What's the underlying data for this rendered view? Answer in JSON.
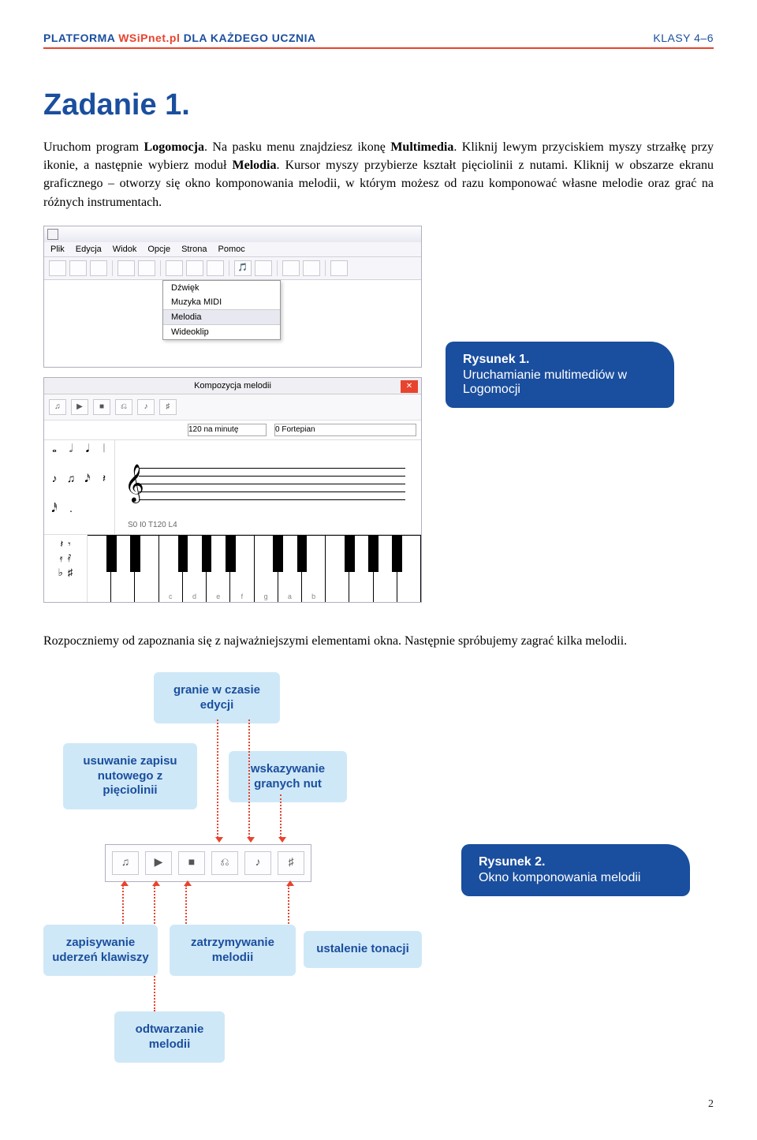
{
  "header": {
    "left_a": "PLATFORMA ",
    "left_b": "WSiPnet.pl",
    "left_c": " DLA KAŻDEGO UCZNIA",
    "right": "KLASY 4–6"
  },
  "title": "Zadanie 1.",
  "para1_a": "Uruchom program ",
  "para1_b": "Logomocja",
  "para1_c": ". Na pasku menu znajdziesz ikonę ",
  "para1_d": "Multimedia",
  "para1_e": ". Kliknij lewym przyciskiem myszy strzałkę przy ikonie, a następnie wybierz moduł ",
  "para1_f": "Melodia",
  "para1_g": ". Kursor myszy przybierze kształt pięciolinii z nutami. Kliknij w obszarze ekranu graficznego – otworzy się okno komponowania melodii, w którym możesz od razu komponować własne melodie oraz grać na różnych instrumentach.",
  "menubar": {
    "m1": "Plik",
    "m2": "Edycja",
    "m3": "Widok",
    "m4": "Opcje",
    "m5": "Strona",
    "m6": "Pomoc"
  },
  "dropdown": {
    "d1": "Dźwięk",
    "d2": "Muzyka MIDI",
    "d3": "Melodia",
    "d4": "Wideoklip"
  },
  "ss2": {
    "title": "Kompozycja melodii",
    "tempo_label": "120 na minutę",
    "instrument": "0 Fortepian",
    "status": "S0 I0 T120 L4",
    "notes": {
      "n1": "𝅝",
      "n2": "𝅗𝅥",
      "n3": "𝅘𝅥",
      "n4": "𝄀",
      "n5": "♪",
      "n6": "♫",
      "n7": "𝅘𝅥𝅯",
      "n8": "𝄽",
      "n9": "𝅘𝅥𝅰",
      "n10": "."
    },
    "keys": [
      "c",
      "d",
      "e",
      "f",
      "g",
      "a",
      "b"
    ]
  },
  "caption1": {
    "title": "Rysunek 1.",
    "text": "Uruchamianie multimediów w Logomocji"
  },
  "mid_text": "Rozpoczniemy od zapoznania się z najważniejszymi elementami okna. Następnie spróbujemy zagrać kilka melodii.",
  "labels": {
    "l1": "granie w czasie edycji",
    "l2": "usuwanie zapisu nutowego z pięciolinii",
    "l3": "wskazywanie granych nut",
    "l4": "zapisywanie uderzeń klawiszy",
    "l5": "zatrzymywanie melodii",
    "l6": "ustalenie tonacji",
    "l7": "odtwarzanie melodii"
  },
  "caption2": {
    "title": "Rysunek 2.",
    "text": "Okno komponowania melodii"
  },
  "toolbar_icons": {
    "i1": "♫",
    "i2": "▶",
    "i3": "■",
    "i4": "⎌",
    "i5": "♪",
    "i6": "♯"
  },
  "page_num": "2"
}
